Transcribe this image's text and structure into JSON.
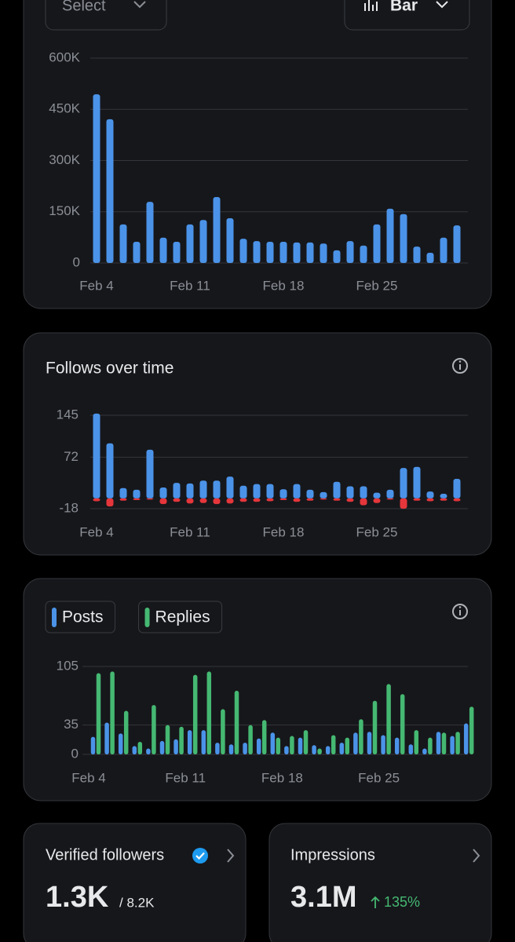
{
  "filters": {
    "period": "Select",
    "view": "Bar"
  },
  "chart_data": [
    {
      "type": "bar",
      "categories": [
        "Feb 4",
        null,
        null,
        null,
        null,
        null,
        null,
        "Feb 11",
        null,
        null,
        null,
        null,
        null,
        null,
        "Feb 18",
        null,
        null,
        null,
        null,
        null,
        null,
        "Feb 25",
        null,
        null,
        null,
        null,
        null,
        null
      ],
      "values": [
        494000,
        421000,
        113000,
        62000,
        179000,
        74000,
        62000,
        113000,
        126000,
        193000,
        131000,
        71000,
        64000,
        62000,
        62000,
        60000,
        60000,
        57000,
        37000,
        64000,
        51000,
        113000,
        159000,
        143000,
        48000,
        30000,
        74000,
        110000
      ],
      "color": "#4b93e8",
      "ylim": [
        0,
        600000
      ],
      "yticks": [
        0,
        {
          "value": 150000,
          "label": "150K"
        },
        {
          "value": 300000,
          "label": "300K"
        },
        {
          "value": 450000,
          "label": "450K"
        },
        {
          "value": 600000,
          "label": "600K"
        }
      ],
      "grid": true
    },
    {
      "type": "bar",
      "title": "Follows over time",
      "categories": [
        "Feb 4",
        null,
        null,
        null,
        null,
        null,
        null,
        "Feb 11",
        null,
        null,
        null,
        null,
        null,
        null,
        "Feb 18",
        null,
        null,
        null,
        null,
        null,
        null,
        "Feb 25",
        null,
        null,
        null,
        null,
        null,
        null
      ],
      "series": [
        {
          "color": "#4b93e8",
          "values": [
            148,
            96,
            18,
            15,
            85,
            19,
            27,
            26,
            31,
            31,
            38,
            22,
            25,
            25,
            16,
            25,
            15,
            11,
            29,
            21,
            21,
            10,
            15,
            53,
            55,
            12,
            8,
            34
          ]
        },
        {
          "color": "#e5363b",
          "values": [
            -5,
            -14,
            -4,
            -3,
            -2,
            -10,
            -6,
            -9,
            -8,
            -10,
            -9,
            -6,
            -6,
            -5,
            -3,
            -6,
            -4,
            -2,
            -4,
            -6,
            -12,
            -8,
            -2,
            -18,
            -4,
            -5,
            -4,
            -5
          ]
        }
      ],
      "ylim": [
        -18,
        150
      ],
      "yticks": [
        -18,
        72,
        145
      ],
      "grid": true
    },
    {
      "type": "bar",
      "categories": [
        "Feb 4",
        null,
        null,
        null,
        null,
        null,
        null,
        "Feb 11",
        null,
        null,
        null,
        null,
        null,
        null,
        "Feb 18",
        null,
        null,
        null,
        null,
        null,
        null,
        "Feb 25",
        null,
        null,
        null,
        null,
        null,
        null
      ],
      "series": [
        {
          "name": "Posts",
          "color": "#4b93e8",
          "values": [
            21,
            38,
            25,
            10,
            7,
            16,
            18,
            29,
            29,
            14,
            12,
            14,
            19,
            26,
            10,
            20,
            11,
            10,
            14,
            26,
            27,
            23,
            20,
            12,
            7,
            27,
            22,
            37
          ]
        },
        {
          "name": "Replies",
          "color": "#45b872",
          "values": [
            97,
            99,
            52,
            15,
            59,
            35,
            33,
            95,
            99,
            54,
            76,
            35,
            41,
            20,
            22,
            29,
            7,
            23,
            20,
            42,
            64,
            84,
            72,
            29,
            20,
            26,
            27,
            57
          ]
        }
      ],
      "ylim": [
        0,
        105
      ],
      "yticks": [
        0,
        35,
        105
      ],
      "grid": true
    }
  ],
  "cards": [
    {
      "title": "Verified followers",
      "value": "1.3K",
      "total": "/ 8.2K"
    },
    {
      "title": "Impressions",
      "value": "3.1M",
      "change": "135%"
    }
  ]
}
